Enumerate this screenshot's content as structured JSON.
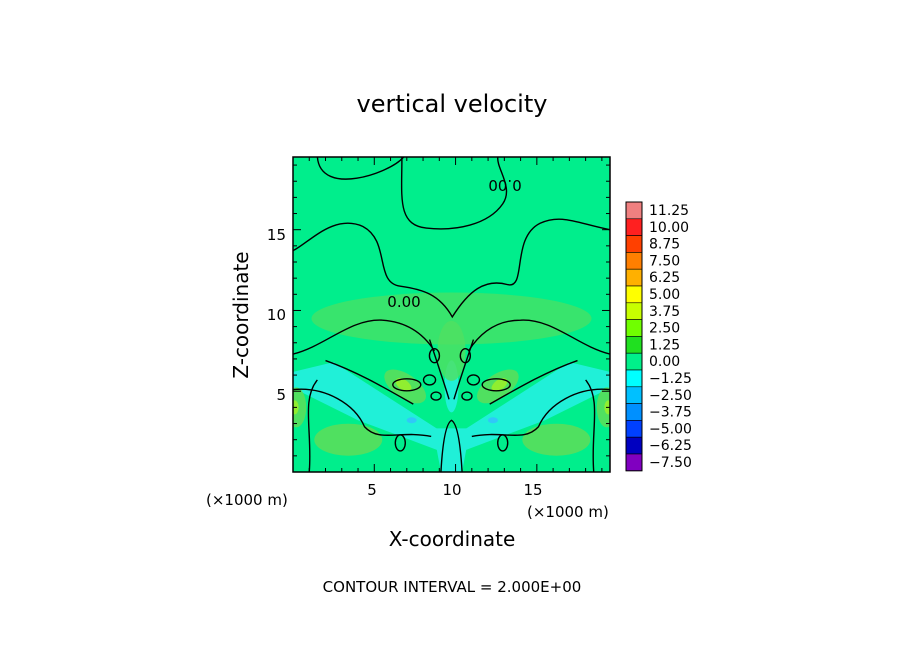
{
  "chart_data": {
    "type": "heatmap",
    "title": "vertical velocity",
    "xlabel": "X-coordinate",
    "ylabel": "Z-coordinate",
    "x_unit": "(×1000 m)",
    "z_unit": "(×1000 m)",
    "xlim": [
      0,
      19.5
    ],
    "ylim": [
      0,
      19.5
    ],
    "x_ticks": [
      "5",
      "10",
      "15"
    ],
    "y_ticks": [
      "5",
      "10",
      "15"
    ],
    "contour_interval": "CONTOUR INTERVAL = 2.000E+00",
    "contour_labels": [
      "0.00",
      "0.00"
    ],
    "colorbar": {
      "levels": [
        "11.25",
        "10.00",
        "8.75",
        "7.50",
        "6.25",
        "5.00",
        "3.75",
        "2.50",
        "1.25",
        "0.00",
        "-1.25",
        "-2.50",
        "-3.75",
        "-5.00",
        "-6.25",
        "-7.50"
      ],
      "colors": [
        "#f08080",
        "#ff2020",
        "#ff4000",
        "#ff7f00",
        "#ffb000",
        "#ffff00",
        "#c8ff00",
        "#70ff00",
        "#20e020",
        "#00f08a",
        "#00ffff",
        "#00c0ff",
        "#0090ff",
        "#0040ff",
        "#0000c0",
        "#8000c0"
      ]
    },
    "field_colors": {
      "background": "#00ee8c",
      "positive": "#50e060",
      "strong_positive": "#90ee30",
      "negative": "#20f0d8",
      "strong_negative": "#30c8f8"
    }
  }
}
